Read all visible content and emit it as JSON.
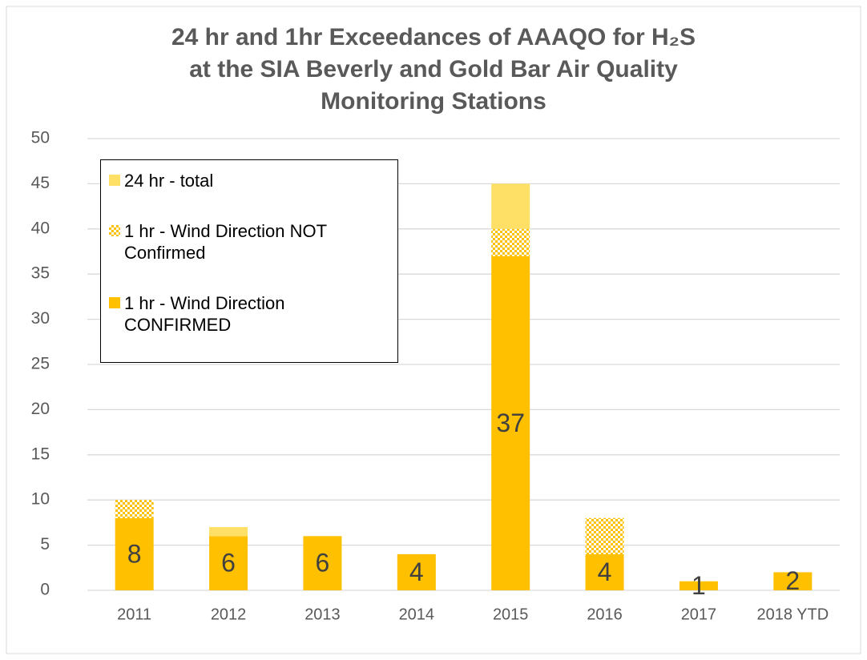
{
  "chart_data": {
    "type": "stacked_bar",
    "title_lines": [
      "24 hr and 1hr Exceedances of AAAQO for H₂S",
      "at the SIA Beverly and Gold Bar Air Quality",
      "Monitoring Stations"
    ],
    "categories": [
      "2011",
      "2012",
      "2013",
      "2014",
      "2015",
      "2016",
      "2017",
      "2018 YTD"
    ],
    "series": [
      {
        "name": "1 hr - Wind Direction CONFIRMED",
        "color": "#ffc000",
        "values": [
          8,
          6,
          6,
          4,
          37,
          4,
          1,
          2
        ],
        "data_labels": true
      },
      {
        "name": "1 hr - Wind Direction NOT Confirmed",
        "color": "#ffc000",
        "pattern": "checker",
        "values": [
          2,
          0,
          0,
          0,
          3,
          4,
          0,
          0
        ]
      },
      {
        "name": "24 hr - total",
        "color": "#ffe066",
        "values": [
          0,
          1,
          0,
          0,
          5,
          0,
          0,
          0
        ]
      }
    ],
    "ylim": [
      0,
      50
    ],
    "yticks": [
      0,
      5,
      10,
      15,
      20,
      25,
      30,
      35,
      40,
      45,
      50
    ],
    "grid": true,
    "legend": "top-left"
  }
}
